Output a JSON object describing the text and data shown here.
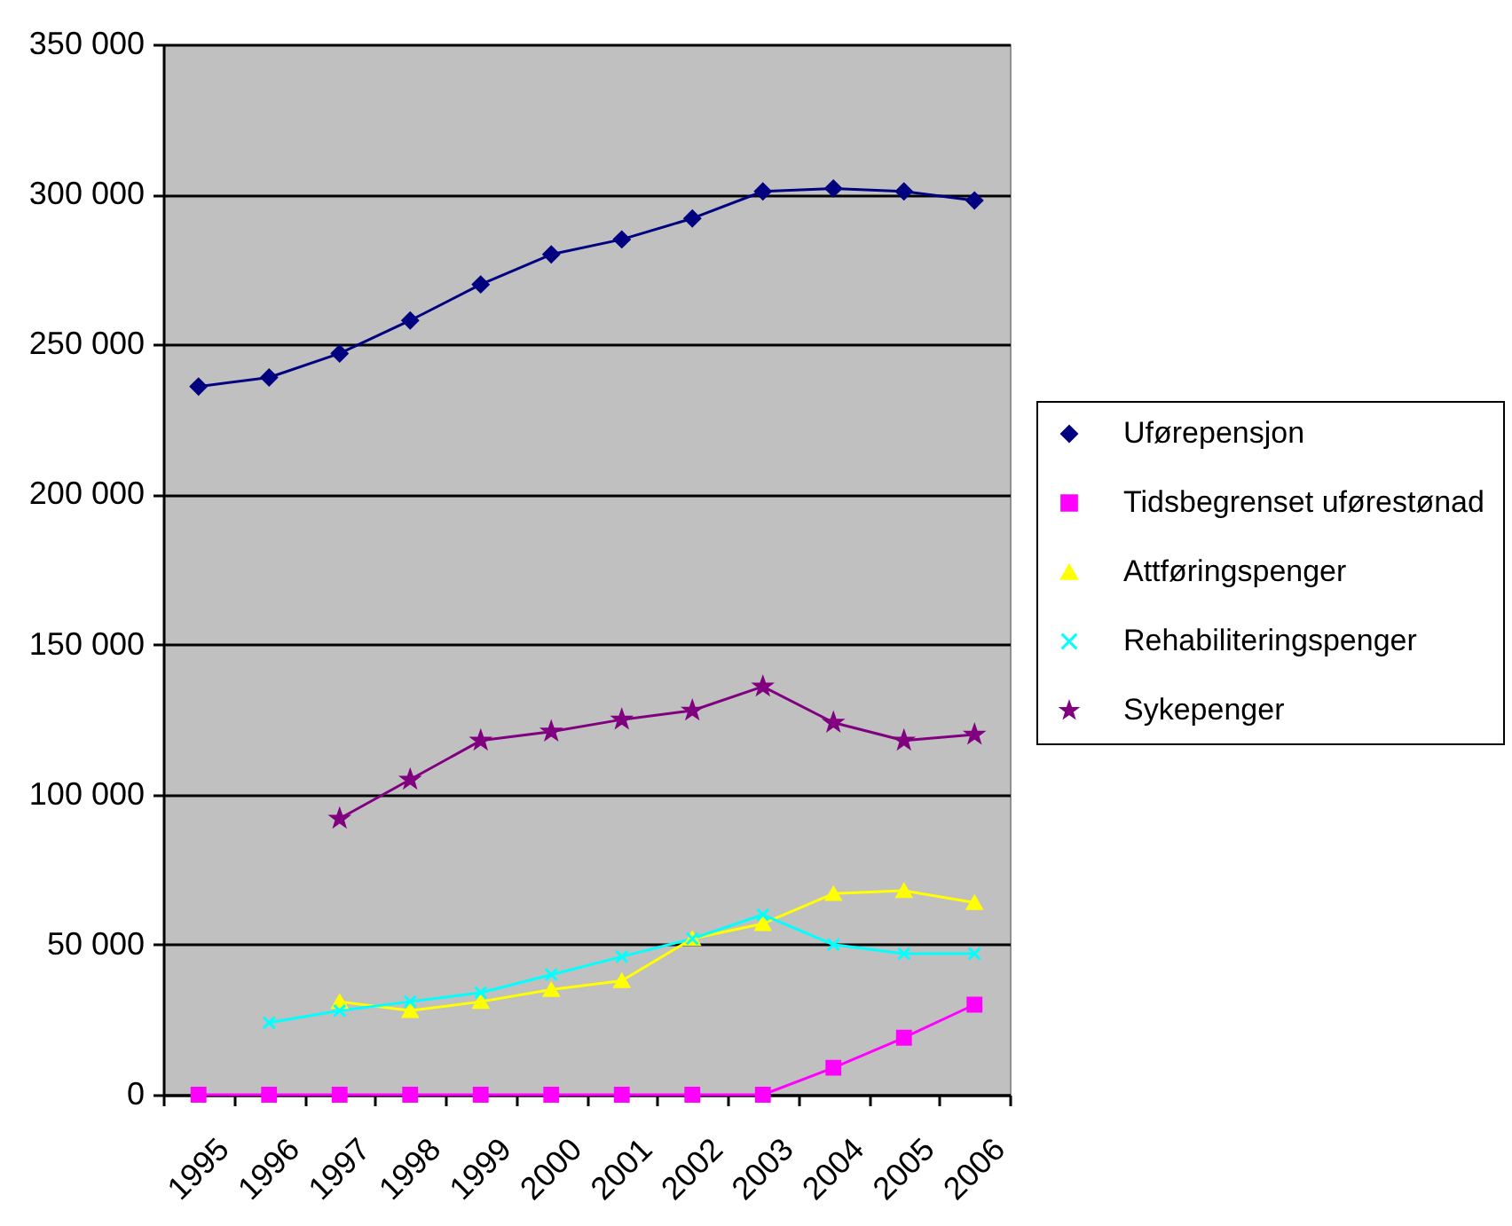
{
  "chart_data": {
    "type": "line",
    "categories": [
      "1995",
      "1996",
      "1997",
      "1998",
      "1999",
      "2000",
      "2001",
      "2002",
      "2003",
      "2004",
      "2005",
      "2006"
    ],
    "ylim": [
      0,
      350000
    ],
    "yticks": [
      0,
      {
        "value": 50000,
        "label": "50 000"
      },
      {
        "value": 100000,
        "label": "100 000"
      },
      {
        "value": 150000,
        "label": "150 000"
      },
      {
        "value": 200000,
        "label": "200 000"
      },
      {
        "value": 250000,
        "label": "250 000"
      },
      {
        "value": 300000,
        "label": "300 000"
      },
      {
        "value": 350000,
        "label": "350 000"
      }
    ],
    "grid": "y",
    "legend": "right",
    "series": [
      {
        "name": "Uførepensjon",
        "color": "#000080",
        "marker": "diamond",
        "values": [
          236000,
          239000,
          247000,
          258000,
          270000,
          280000,
          285000,
          292000,
          301000,
          302000,
          301000,
          298000
        ]
      },
      {
        "name": "Tidsbegrenset uførestønad",
        "color": "#ff00ff",
        "marker": "square",
        "values": [
          0,
          0,
          0,
          0,
          0,
          0,
          0,
          0,
          0,
          9000,
          19000,
          30000
        ]
      },
      {
        "name": "Attføringspenger",
        "color": "#ffff00",
        "marker": "triangle",
        "values": [
          null,
          null,
          31000,
          28000,
          31000,
          35000,
          38000,
          52000,
          57000,
          67000,
          68000,
          64000
        ]
      },
      {
        "name": "Rehabiliteringspenger",
        "color": "#00ffff",
        "marker": "cross",
        "values": [
          null,
          24000,
          28000,
          31000,
          34000,
          40000,
          46000,
          52000,
          60000,
          50000,
          47000,
          47000
        ]
      },
      {
        "name": "Sykepenger",
        "color": "#800080",
        "marker": "star",
        "values": [
          null,
          null,
          92000,
          105000,
          118000,
          121000,
          125000,
          128000,
          136000,
          124000,
          118000,
          120000
        ]
      }
    ]
  }
}
